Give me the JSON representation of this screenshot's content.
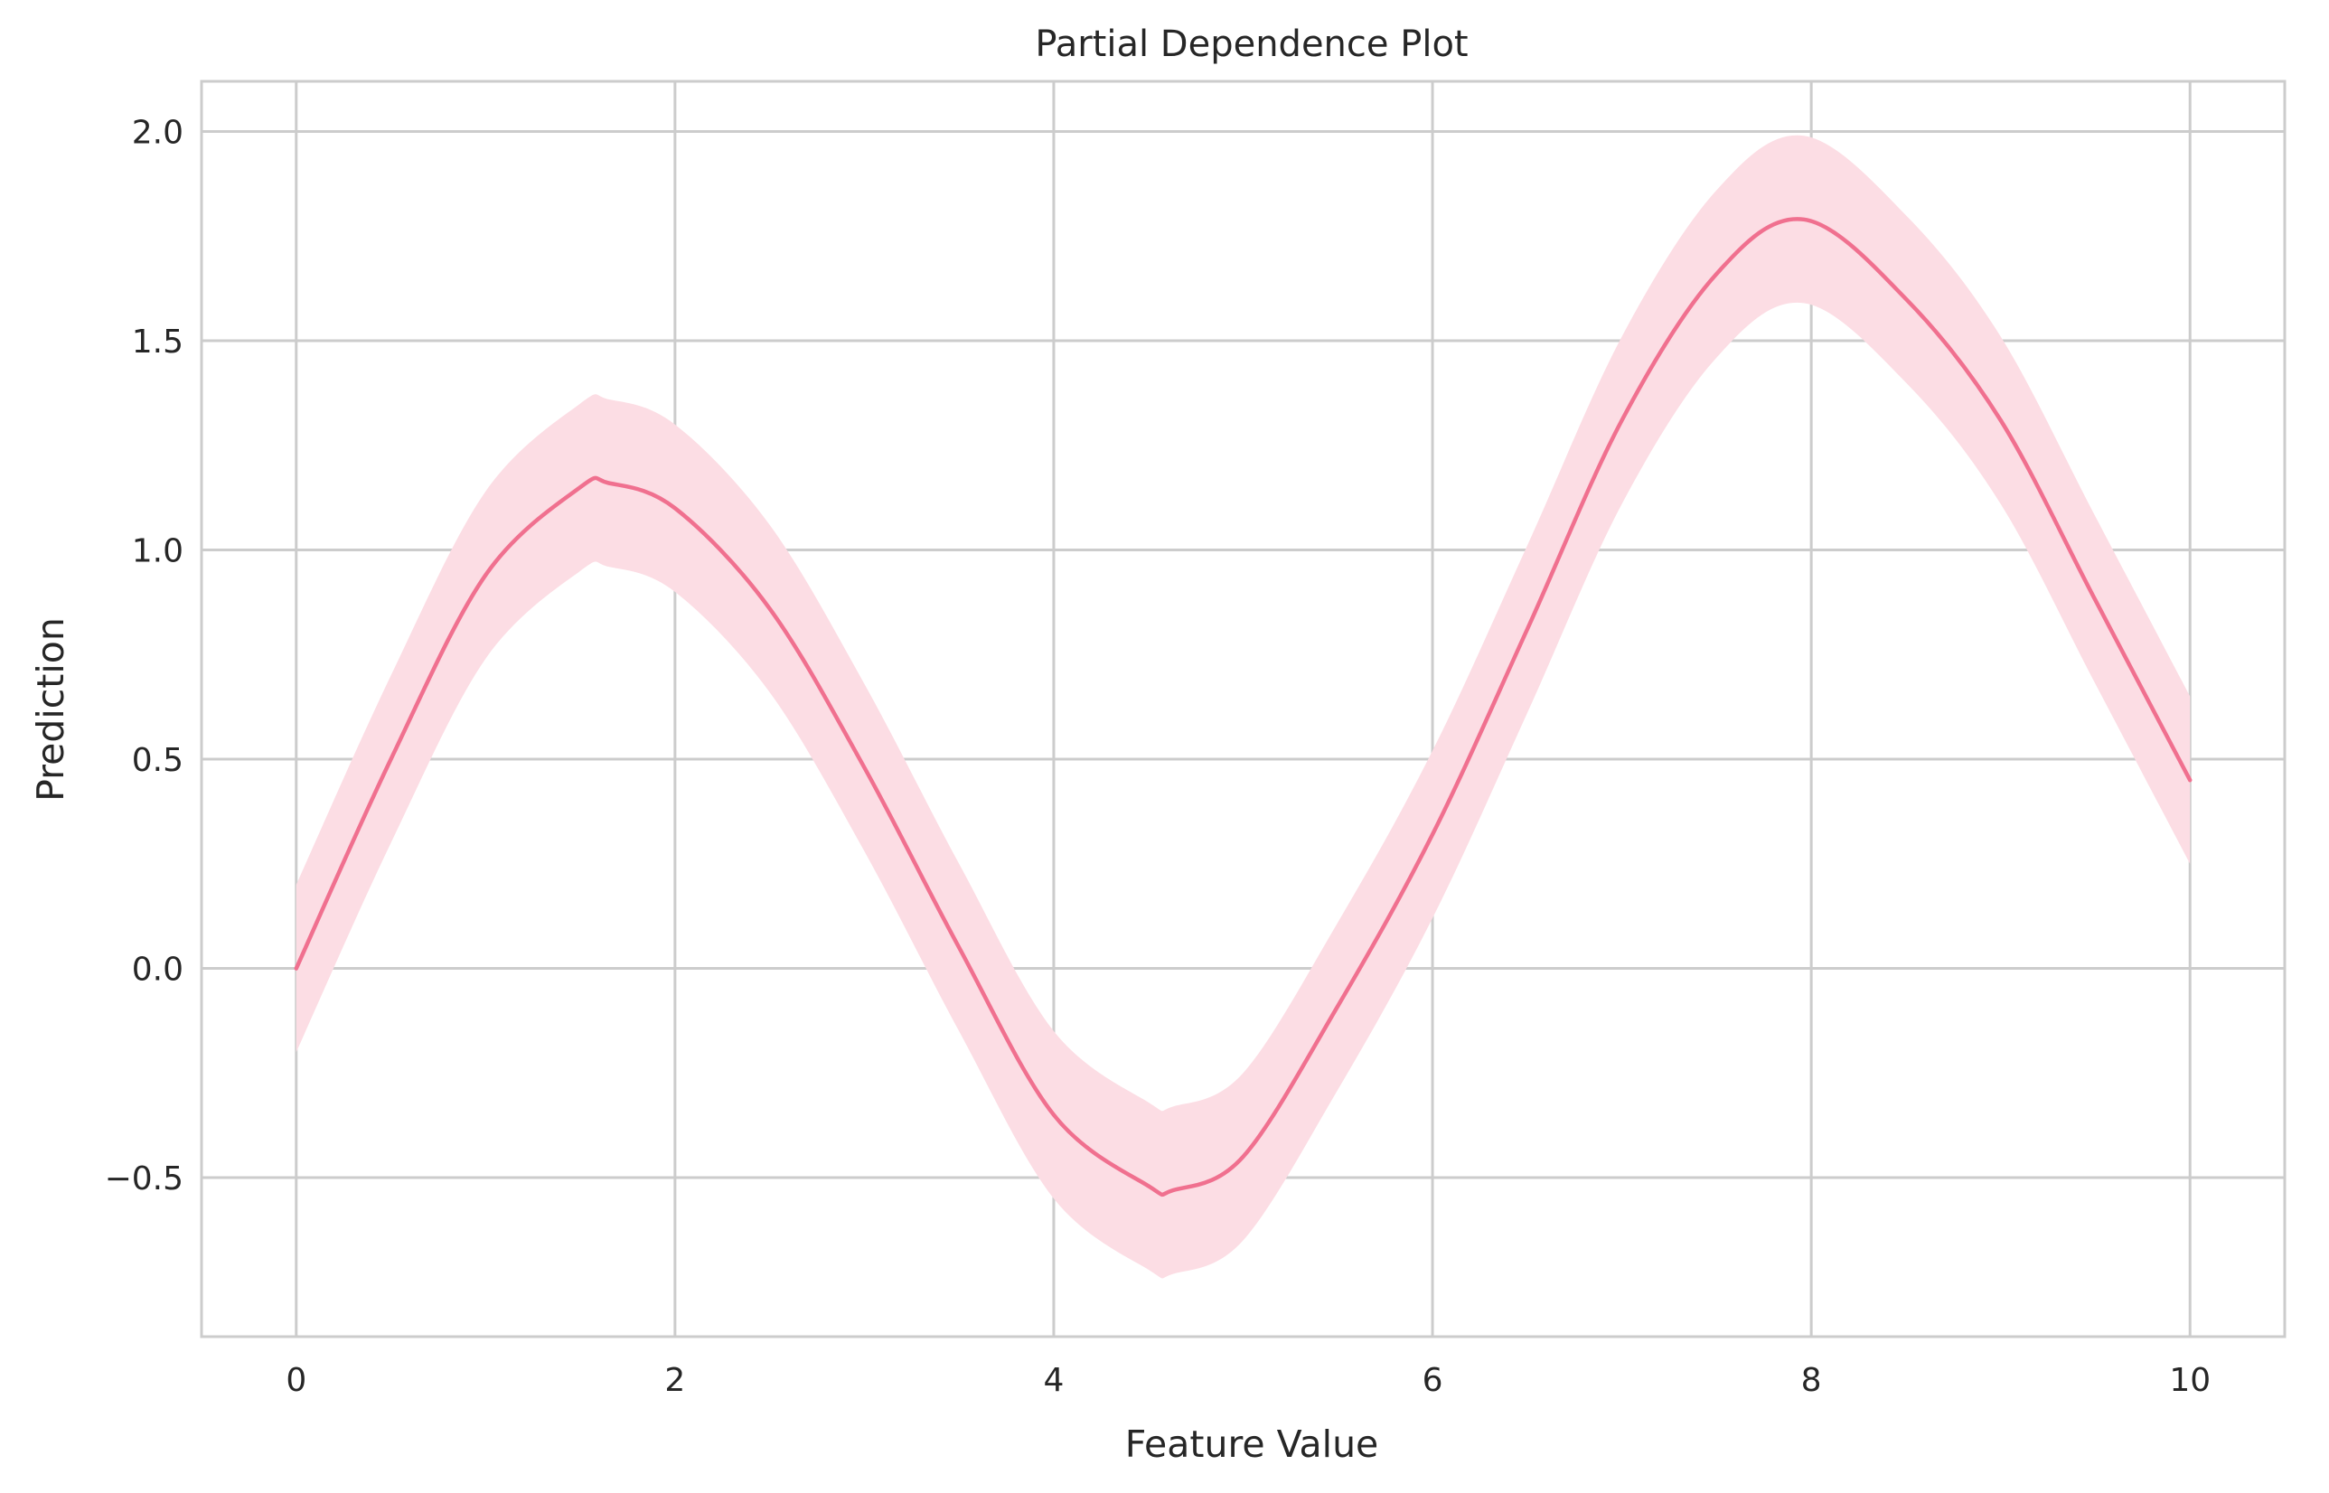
{
  "chart_data": {
    "type": "line",
    "title": "Partial Dependence Plot",
    "xlabel": "Feature Value",
    "ylabel": "Prediction",
    "xlim": [
      -0.5,
      10.5
    ],
    "ylim": [
      -0.88,
      2.12
    ],
    "x_ticks": [
      0,
      2,
      4,
      6,
      8,
      10
    ],
    "x_tick_labels": [
      "0",
      "2",
      "4",
      "6",
      "8",
      "10"
    ],
    "y_ticks": [
      -0.5,
      0.0,
      0.5,
      1.0,
      1.5,
      2.0
    ],
    "y_tick_labels": [
      "−0.5",
      "0.0",
      "0.5",
      "1.0",
      "1.5",
      "2.0"
    ],
    "grid": true,
    "series": [
      {
        "name": "Prediction",
        "color": "#f0708f",
        "x": [
          0.0,
          0.5,
          1.0,
          1.5,
          1.65,
          2.0,
          2.5,
          3.0,
          3.5,
          4.0,
          4.5,
          4.63,
          5.0,
          5.5,
          6.0,
          6.5,
          7.0,
          7.5,
          7.96,
          8.5,
          9.0,
          9.5,
          10.0
        ],
        "y": [
          0.0,
          0.5,
          0.94,
          1.15,
          1.16,
          1.1,
          0.86,
          0.48,
          0.05,
          -0.35,
          -0.52,
          -0.53,
          -0.45,
          -0.09,
          0.32,
          0.81,
          1.31,
          1.66,
          1.79,
          1.6,
          1.31,
          0.88,
          0.45
        ],
        "lower": [
          -0.2,
          0.3,
          0.74,
          0.95,
          0.96,
          0.9,
          0.66,
          0.28,
          -0.15,
          -0.55,
          -0.72,
          -0.73,
          -0.65,
          -0.29,
          0.12,
          0.61,
          1.11,
          1.46,
          1.59,
          1.4,
          1.11,
          0.68,
          0.25
        ],
        "upper": [
          0.2,
          0.7,
          1.14,
          1.35,
          1.36,
          1.3,
          1.06,
          0.68,
          0.25,
          -0.15,
          -0.32,
          -0.33,
          -0.25,
          0.11,
          0.52,
          1.01,
          1.51,
          1.86,
          1.99,
          1.8,
          1.51,
          1.08,
          0.65
        ],
        "band_color": "#fcdde4"
      }
    ]
  }
}
